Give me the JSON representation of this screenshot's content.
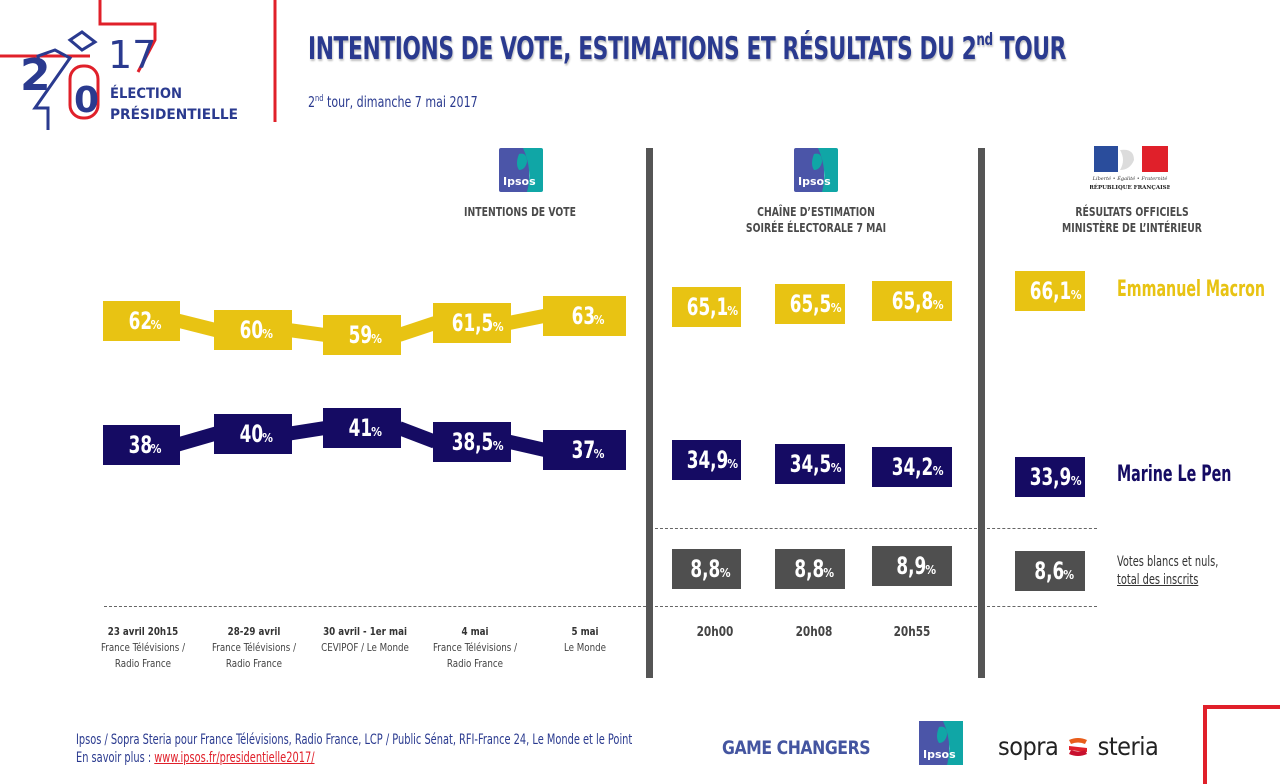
{
  "logo": {
    "year_top": "17",
    "year_left": "2",
    "year_zero": "0",
    "line1": "ÉLECTION",
    "line2": "PRÉSIDENTIELLE"
  },
  "header": {
    "title": "INTENTIONS DE VOTE, ESTIMATIONS ET RÉSULTATS DU 2",
    "title_sup": "nd",
    "title_end": " TOUR",
    "subtitle_pre": "2",
    "subtitle_sup": "nd",
    "subtitle_post": " tour, dimanche 7 mai 2017"
  },
  "sections": {
    "polls": {
      "logo": "Ipsos",
      "line1": "INTENTIONS DE VOTE"
    },
    "estimates": {
      "logo": "Ipsos",
      "line1": "CHAÎNE D’ESTIMATION",
      "line2": "SOIRÉE ÉLECTORALE 7 MAI"
    },
    "official": {
      "motto": "Liberté • Égalité • Fraternité",
      "republic": "RÉPUBLIQUE FRANÇAISE",
      "line1": "RÉSULTATS OFFICIELS",
      "line2": "MINISTÈRE DE L’INTÉRIEUR"
    }
  },
  "colors": {
    "macron": "#e8c313",
    "lepen": "#150b63",
    "blanks": "#4f4f4f",
    "title": "#2a3a8f",
    "accent_red": "#e0202a"
  },
  "pct_sign": "%",
  "chart_data": {
    "type": "line",
    "title": "INTENTIONS DE VOTE, ESTIMATIONS ET RÉSULTATS DU 2nd TOUR",
    "subtitle": "2nd tour, dimanche 7 mai 2017",
    "polls": {
      "categories": [
        {
          "date": "23 avril 20h15",
          "source1": "France Télévisions /",
          "source2": "Radio France"
        },
        {
          "date": "28-29 avril",
          "source1": "France Télévisions /",
          "source2": "Radio France"
        },
        {
          "date": "30 avril - 1er mai",
          "source1": "CEVIPOF / Le Monde",
          "source2": ""
        },
        {
          "date": "4 mai",
          "source1": "France Télévisions /",
          "source2": "Radio France"
        },
        {
          "date": "5 mai",
          "source1": "Le Monde",
          "source2": ""
        }
      ],
      "series": [
        {
          "name": "Emmanuel Macron",
          "values": [
            62,
            60,
            59,
            61.5,
            63
          ],
          "labels": [
            "62",
            "60",
            "59",
            "61,5",
            "63"
          ]
        },
        {
          "name": "Marine Le Pen",
          "values": [
            38,
            40,
            41,
            38.5,
            37
          ],
          "labels": [
            "38",
            "40",
            "41",
            "38,5",
            "37"
          ]
        }
      ]
    },
    "estimates": {
      "categories": [
        "20h00",
        "20h08",
        "20h55"
      ],
      "series": [
        {
          "name": "Emmanuel Macron",
          "values": [
            65.1,
            65.5,
            65.8
          ],
          "labels": [
            "65,1",
            "65,5",
            "65,8"
          ]
        },
        {
          "name": "Marine Le Pen",
          "values": [
            34.9,
            34.5,
            34.2
          ],
          "labels": [
            "34,9",
            "34,5",
            "34,2"
          ]
        },
        {
          "name": "Votes blancs et nuls, total des inscrits",
          "values": [
            8.8,
            8.8,
            8.9
          ],
          "labels": [
            "8,8",
            "8,8",
            "8,9"
          ]
        }
      ]
    },
    "official": {
      "series": [
        {
          "name": "Emmanuel Macron",
          "value": 66.1,
          "label": "66,1"
        },
        {
          "name": "Marine Le Pen",
          "value": 33.9,
          "label": "33,9"
        },
        {
          "name": "Votes blancs et nuls, total des inscrits",
          "value": 8.6,
          "label": "8,6"
        }
      ]
    }
  },
  "legend": {
    "macron": "Emmanuel Macron",
    "lepen": "Marine Le Pen",
    "blanks_line1": "Votes blancs et nuls,",
    "blanks_line2": "total des inscrits"
  },
  "footer": {
    "credit": "Ipsos / Sopra Steria pour France Télévisions, Radio France, LCP / Public Sénat, RFI-France 24, Le Monde et le Point",
    "more_label": "En savoir plus : ",
    "link": "www.ipsos.fr/presidentielle2017/",
    "game_changers": "GAME CHANGERS",
    "ipsos": "Ipsos",
    "sopra": "sopra",
    "steria": "steria"
  }
}
